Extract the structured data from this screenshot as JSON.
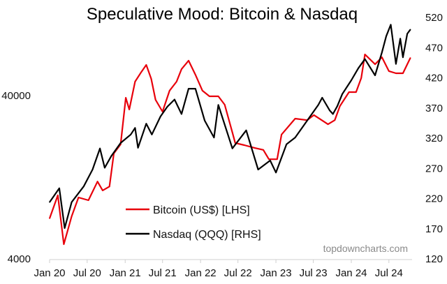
{
  "chart_data": {
    "type": "line",
    "title": "Speculative Mood: Bitcoin & Nasdaq",
    "watermark": "topdowncharts.com",
    "x_ticks": [
      "Jan 20",
      "Jul 20",
      "Jan 21",
      "Jul 21",
      "Jan 22",
      "Jul 22",
      "Jan 23",
      "Jul 23",
      "Jan 24",
      "Jul 24"
    ],
    "x_tick_dates": [
      "2020-01-01",
      "2020-07-01",
      "2021-01-01",
      "2021-07-01",
      "2022-01-01",
      "2022-07-01",
      "2023-01-01",
      "2023-07-01",
      "2024-01-01",
      "2024-07-01"
    ],
    "xlim": [
      "2020-01-01",
      "2024-11-01"
    ],
    "y_left": {
      "scale": "log",
      "ticks": [
        "40000",
        "4000"
      ],
      "tick_values": [
        40000,
        4000
      ],
      "range": [
        4000,
        120000
      ]
    },
    "y_right": {
      "scale": "linear",
      "ticks": [
        "520",
        "470",
        "420",
        "370",
        "320",
        "270",
        "220",
        "170",
        "120"
      ],
      "tick_values": [
        520,
        470,
        420,
        370,
        320,
        270,
        220,
        170,
        120
      ],
      "range": [
        120,
        520
      ]
    },
    "grid": false,
    "legend_position": "bottom-center",
    "series": [
      {
        "name": "Bitcoin (US$) [LHS]",
        "axis": "left",
        "color": "#e8000b",
        "points": [
          [
            "2020-01-01",
            7080
          ],
          [
            "2020-02-10",
            9800
          ],
          [
            "2020-03-10",
            4920
          ],
          [
            "2020-04-17",
            7290
          ],
          [
            "2020-05-20",
            9510
          ],
          [
            "2020-07-07",
            9140
          ],
          [
            "2020-08-20",
            11900
          ],
          [
            "2020-09-14",
            10500
          ],
          [
            "2020-10-17",
            11100
          ],
          [
            "2020-11-07",
            17700
          ],
          [
            "2020-12-10",
            20100
          ],
          [
            "2021-01-04",
            38800
          ],
          [
            "2021-01-21",
            32900
          ],
          [
            "2021-02-18",
            48700
          ],
          [
            "2021-03-20",
            55800
          ],
          [
            "2021-04-13",
            61700
          ],
          [
            "2021-05-07",
            50700
          ],
          [
            "2021-05-28",
            37700
          ],
          [
            "2021-07-01",
            31900
          ],
          [
            "2021-08-04",
            42900
          ],
          [
            "2021-09-07",
            48700
          ],
          [
            "2021-10-01",
            58100
          ],
          [
            "2021-11-04",
            65500
          ],
          [
            "2021-12-07",
            53700
          ],
          [
            "2022-01-10",
            42900
          ],
          [
            "2022-02-13",
            39600
          ],
          [
            "2022-03-28",
            39600
          ],
          [
            "2022-04-28",
            35200
          ],
          [
            "2022-06-04",
            23800
          ],
          [
            "2022-06-18",
            20500
          ],
          [
            "2022-08-01",
            19900
          ],
          [
            "2022-09-21",
            19100
          ],
          [
            "2022-11-01",
            18600
          ],
          [
            "2022-11-28",
            16300
          ],
          [
            "2023-01-07",
            16300
          ],
          [
            "2023-01-28",
            23100
          ],
          [
            "2023-04-04",
            28900
          ],
          [
            "2023-06-01",
            28300
          ],
          [
            "2023-07-04",
            30400
          ],
          [
            "2023-09-10",
            26700
          ],
          [
            "2023-10-13",
            28300
          ],
          [
            "2023-11-07",
            34500
          ],
          [
            "2023-12-21",
            42000
          ],
          [
            "2024-01-24",
            42000
          ],
          [
            "2024-02-18",
            51200
          ],
          [
            "2024-03-07",
            71500
          ],
          [
            "2024-04-25",
            62200
          ],
          [
            "2024-05-28",
            68700
          ],
          [
            "2024-07-01",
            56500
          ],
          [
            "2024-08-04",
            54800
          ],
          [
            "2024-09-07",
            54800
          ],
          [
            "2024-10-13",
            68100
          ]
        ]
      },
      {
        "name": "Nasdaq (QQQ) [RHS]",
        "axis": "right",
        "color": "#000000",
        "points": [
          [
            "2020-01-01",
            214
          ],
          [
            "2020-02-17",
            237
          ],
          [
            "2020-03-14",
            171
          ],
          [
            "2020-04-17",
            214
          ],
          [
            "2020-06-14",
            240
          ],
          [
            "2020-07-27",
            268
          ],
          [
            "2020-09-01",
            303
          ],
          [
            "2020-09-24",
            271
          ],
          [
            "2020-10-27",
            291
          ],
          [
            "2020-12-10",
            312
          ],
          [
            "2021-01-28",
            326
          ],
          [
            "2021-02-18",
            337
          ],
          [
            "2021-03-04",
            304
          ],
          [
            "2021-04-13",
            344
          ],
          [
            "2021-05-10",
            326
          ],
          [
            "2021-06-21",
            356
          ],
          [
            "2021-07-24",
            372
          ],
          [
            "2021-08-28",
            384
          ],
          [
            "2021-10-01",
            360
          ],
          [
            "2021-11-04",
            402
          ],
          [
            "2021-12-07",
            402
          ],
          [
            "2022-01-21",
            349
          ],
          [
            "2022-03-07",
            321
          ],
          [
            "2022-03-28",
            375
          ],
          [
            "2022-06-04",
            303
          ],
          [
            "2022-08-10",
            333
          ],
          [
            "2022-10-07",
            268
          ],
          [
            "2022-12-04",
            283
          ],
          [
            "2023-01-01",
            263
          ],
          [
            "2023-02-21",
            310
          ],
          [
            "2023-04-04",
            321
          ],
          [
            "2023-07-25",
            375
          ],
          [
            "2023-08-13",
            387
          ],
          [
            "2023-09-18",
            366
          ],
          [
            "2023-10-04",
            360
          ],
          [
            "2023-10-25",
            373
          ],
          [
            "2023-11-18",
            393
          ],
          [
            "2024-01-01",
            416
          ],
          [
            "2024-02-04",
            436
          ],
          [
            "2024-03-07",
            451
          ],
          [
            "2024-04-25",
            424
          ],
          [
            "2024-05-28",
            462
          ],
          [
            "2024-06-18",
            489
          ],
          [
            "2024-07-10",
            508
          ],
          [
            "2024-08-04",
            443
          ],
          [
            "2024-08-25",
            485
          ],
          [
            "2024-09-07",
            454
          ],
          [
            "2024-09-28",
            493
          ],
          [
            "2024-10-13",
            500
          ]
        ]
      }
    ]
  }
}
